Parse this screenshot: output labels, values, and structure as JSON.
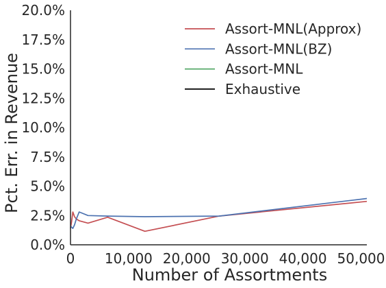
{
  "chart_data": {
    "type": "line",
    "title": "",
    "xlabel": "Number of Assortments",
    "ylabel": "Pct. Err. in Revenue",
    "xlim": [
      0,
      51000
    ],
    "ylim": [
      0,
      20
    ],
    "x_ticks": [
      0,
      10000,
      20000,
      30000,
      40000,
      50000
    ],
    "x_tick_labels": [
      "0",
      "10,000",
      "20,000",
      "30,000",
      "40,000",
      "50,000"
    ],
    "y_ticks": [
      0,
      2.5,
      5,
      7.5,
      10,
      12.5,
      15,
      17.5,
      20
    ],
    "y_tick_labels": [
      "0.0%",
      "2.5%",
      "5.0%",
      "7.5%",
      "10.0%",
      "12.5%",
      "15.0%",
      "17.5%",
      "20.0%"
    ],
    "grid": false,
    "legend_position": "top-right",
    "series": [
      {
        "name": "Assort-MNL(Approx)",
        "color": "#c44e52",
        "x": [
          0,
          200,
          400,
          700,
          1000,
          1500,
          3000,
          6400,
          12800,
          25600,
          51000
        ],
        "y": [
          1.4,
          2.0,
          2.8,
          2.4,
          2.2,
          2.05,
          1.85,
          2.35,
          1.15,
          2.45,
          3.7
        ]
      },
      {
        "name": "Assort-MNL(BZ)",
        "color": "#4c72b0",
        "x": [
          0,
          200,
          400,
          700,
          1000,
          1500,
          3000,
          6400,
          12800,
          25600,
          51000
        ],
        "y": [
          1.6,
          1.5,
          1.4,
          1.7,
          2.2,
          2.8,
          2.5,
          2.45,
          2.4,
          2.45,
          3.95
        ]
      },
      {
        "name": "Assort-MNL",
        "color": "#55a868",
        "x": [],
        "y": []
      },
      {
        "name": "Exhaustive",
        "color": "#000000",
        "x": [],
        "y": []
      }
    ]
  }
}
